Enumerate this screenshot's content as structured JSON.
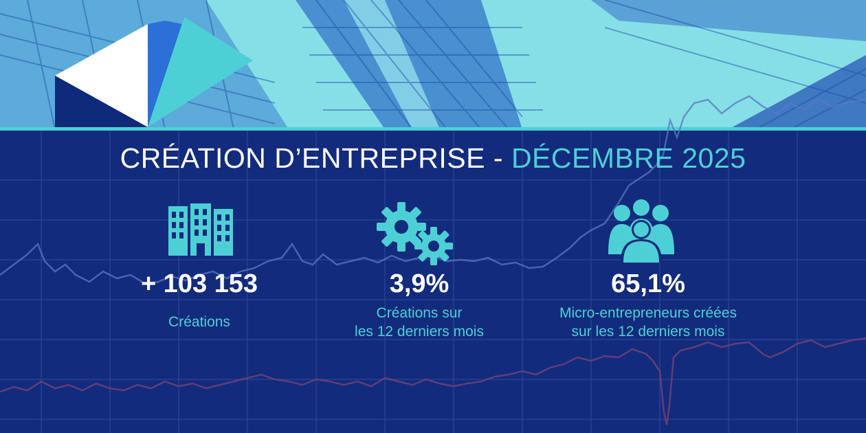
{
  "banner": {
    "title_main": "CRÉATION D’ENTREPRISE - ",
    "title_period": "DÉCEMBRE 2025",
    "colors": {
      "background": "#132b7c",
      "accent": "#4dd0d5",
      "text": "#ffffff"
    }
  },
  "stats": [
    {
      "icon": "building-icon",
      "value": "+ 103 153",
      "label_lines": [
        "Créations"
      ]
    },
    {
      "icon": "gears-icon",
      "value": "3,9%",
      "label_lines": [
        "Créations sur",
        "les 12 derniers mois"
      ]
    },
    {
      "icon": "people-icon",
      "value": "65,1%",
      "label_lines": [
        "Micro-entrepreneurs créées",
        "sur les 12 derniers mois"
      ]
    }
  ]
}
